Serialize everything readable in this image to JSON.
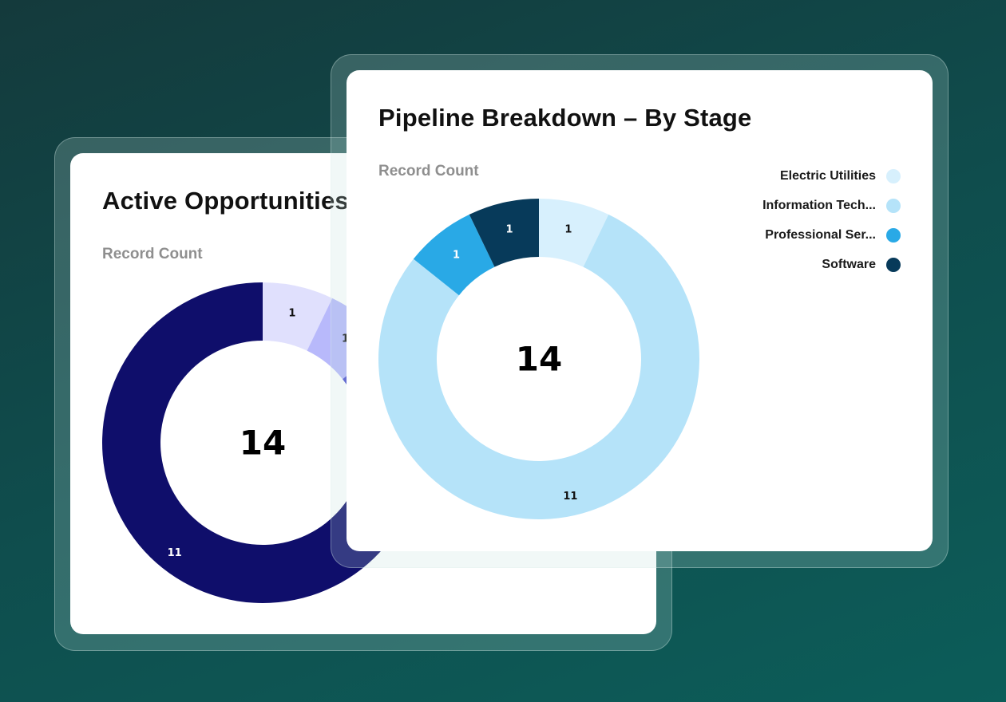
{
  "back_card": {
    "title": "Active Opportunities",
    "subtitle": "Record Count"
  },
  "front_card": {
    "title": "Pipeline Breakdown – By Stage",
    "subtitle": "Record Count"
  },
  "chart_data": [
    {
      "type": "donut",
      "title": "Active Opportunities",
      "subtitle": "Record Count",
      "total": 14,
      "slices": [
        {
          "label": "",
          "value": 1,
          "color": "#e0e0fd"
        },
        {
          "label": "",
          "value": 1,
          "color": "#b8b9fb"
        },
        {
          "label": "",
          "value": 1,
          "color": "#4d4fd0"
        },
        {
          "label": "",
          "value": 11,
          "color": "#0f0e6b"
        }
      ]
    },
    {
      "type": "donut",
      "title": "Pipeline Breakdown – By Stage",
      "subtitle": "Record Count",
      "total": 14,
      "slices": [
        {
          "label": "Electric Utilities",
          "value": 1,
          "color": "#d7f0fd"
        },
        {
          "label": "Information Tech...",
          "value": 11,
          "color": "#b5e3f9"
        },
        {
          "label": "Professional Ser...",
          "value": 1,
          "color": "#29a9e6"
        },
        {
          "label": "Software",
          "value": 1,
          "color": "#073a5a"
        }
      ],
      "legend": "top-right"
    }
  ]
}
